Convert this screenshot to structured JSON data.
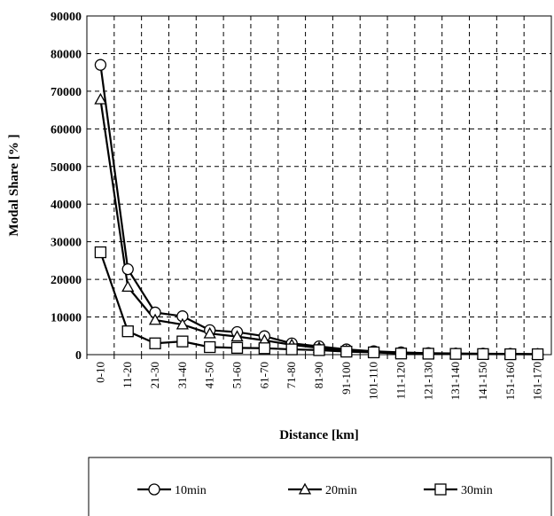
{
  "chart_data": {
    "type": "line",
    "title": "",
    "xlabel": "Distance [km]",
    "ylabel": "Modal  Share [% ]",
    "ylim": [
      0,
      90000
    ],
    "yticks": [
      0,
      10000,
      20000,
      30000,
      40000,
      50000,
      60000,
      70000,
      80000,
      90000
    ],
    "grid": true,
    "legend_position": "bottom",
    "categories": [
      "0-10",
      "11-20",
      "21-30",
      "31-40",
      "41-50",
      "51-60",
      "61-70",
      "71-80",
      "81-90",
      "91-100",
      "101-110",
      "111-120",
      "121-130",
      "131-140",
      "141-150",
      "151-160",
      "161-170"
    ],
    "series": [
      {
        "name": "10min",
        "marker": "circle",
        "values": [
          77000,
          22700,
          11200,
          10200,
          6500,
          6000,
          4900,
          3000,
          2200,
          1400,
          900,
          600,
          400,
          300,
          250,
          200,
          150
        ]
      },
      {
        "name": "20min",
        "marker": "triangle",
        "values": [
          67800,
          18000,
          9200,
          8000,
          5600,
          4800,
          3800,
          2600,
          1800,
          1000,
          700,
          500,
          300,
          250,
          200,
          150,
          100
        ]
      },
      {
        "name": "30min",
        "marker": "square",
        "values": [
          27200,
          6200,
          3000,
          3500,
          2000,
          1800,
          1700,
          1400,
          1200,
          800,
          600,
          300,
          250,
          200,
          150,
          100,
          100
        ]
      }
    ]
  }
}
